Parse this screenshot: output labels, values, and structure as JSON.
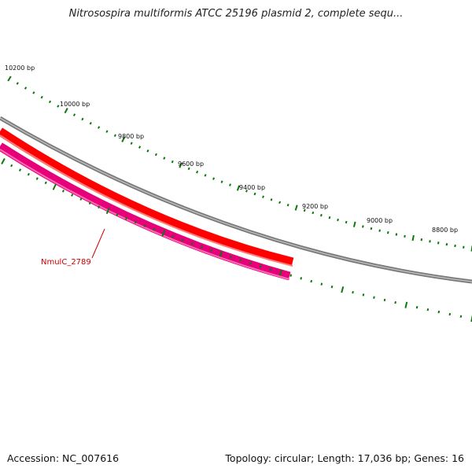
{
  "title": "Nitrosospira multiformis ATCC 25196 plasmid 2, complete sequ...",
  "footer": {
    "accession": "Accession: NC_007616",
    "info": "Topology: circular; Length: 17,036 bp; Genes: 16"
  },
  "ticks": {
    "outer": [
      {
        "label": "10200 bp"
      },
      {
        "label": "10000 bp"
      },
      {
        "label": "9800 bp"
      },
      {
        "label": "9600 bp"
      },
      {
        "label": "9400 bp"
      },
      {
        "label": "9200 bp"
      },
      {
        "label": "9000 bp"
      },
      {
        "label": "8800 bp"
      }
    ]
  },
  "genes": [
    {
      "name": "NmulC_2789",
      "color": "#ff1493",
      "strand": "minus"
    }
  ],
  "colors": {
    "backbone": "#808080",
    "forward_gene": "#ff0000",
    "reverse_gene": "#e6006e",
    "ticks": "#0a7a0a"
  }
}
